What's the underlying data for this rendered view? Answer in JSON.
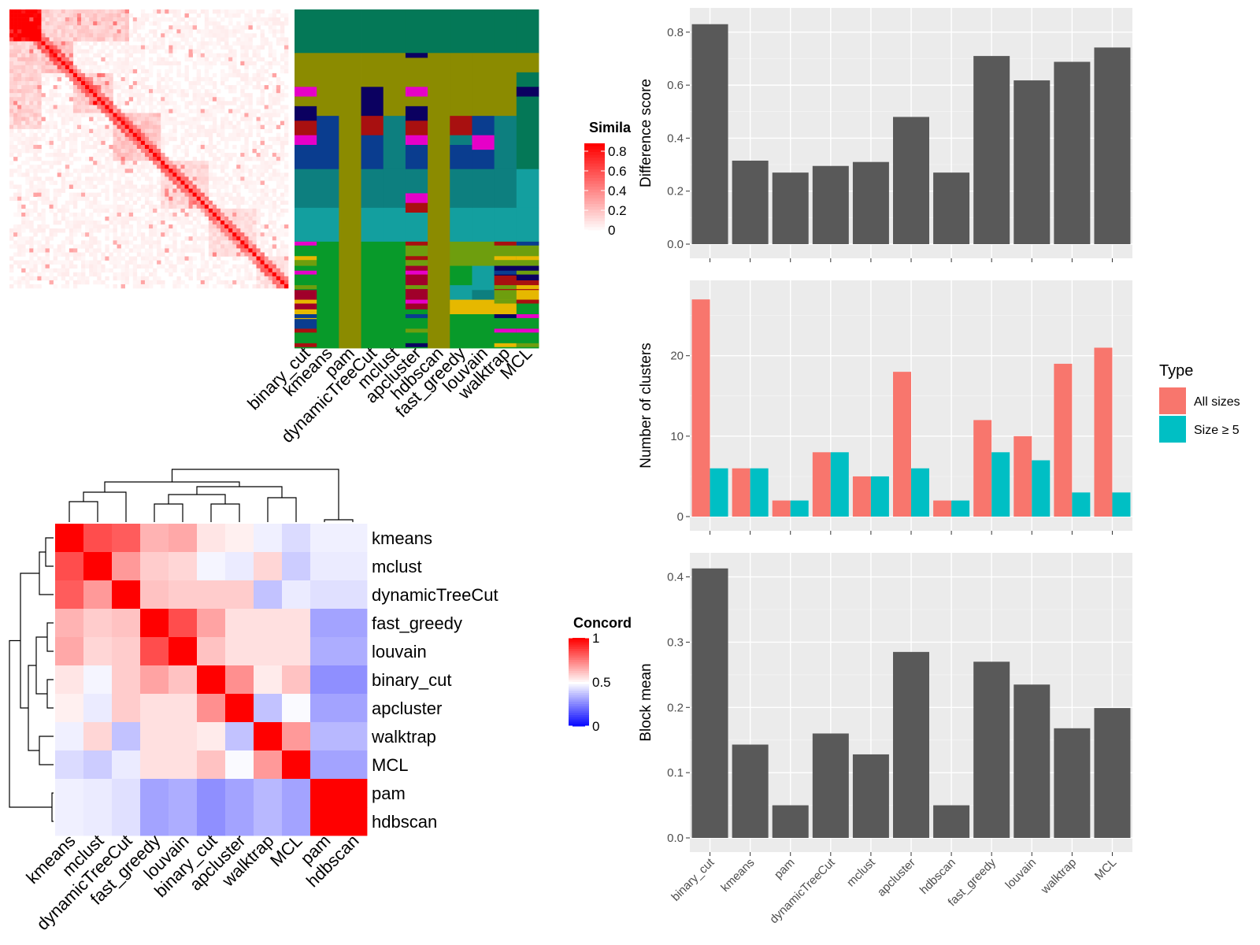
{
  "colors": {
    "bar_dark": "#595959",
    "all_sizes": "#F8766D",
    "size_ge5": "#00BFC4",
    "sim_high": "#ff0000",
    "sim_low": "#ffffff",
    "conc_high": "#ff0000",
    "conc_mid": "#ffffff",
    "conc_low": "#0000ff"
  },
  "similarity_heatmap": {
    "legend_title": "Simila",
    "legend_ticks": [
      "0.8",
      "0.6",
      "0.4",
      "0.2",
      "0"
    ],
    "n": 70
  },
  "partition_heatmap": {
    "methods": [
      "binary_cut",
      "kmeans",
      "pam",
      "dynamicTreeCut",
      "mclust",
      "apcluster",
      "hdbscan",
      "fast_greedy",
      "louvain",
      "walktrap",
      "MCL"
    ],
    "palette": [
      "#047857",
      "#8b8b00",
      "#0a3d8f",
      "#0d7f7f",
      "#139f9f",
      "#089a2a",
      "#a0002a",
      "#e600c8",
      "#0b0060",
      "#a81010",
      "#6e9e0e",
      "#e6b800"
    ]
  },
  "concordance_heatmap": {
    "legend_title": "Concord",
    "legend_ticks": [
      "1",
      "0.5",
      "0"
    ],
    "methods": [
      "kmeans",
      "mclust",
      "dynamicTreeCut",
      "fast_greedy",
      "louvain",
      "binary_cut",
      "apcluster",
      "walktrap",
      "MCL",
      "pam",
      "hdbscan"
    ],
    "matrix": [
      [
        1.0,
        0.85,
        0.82,
        0.65,
        0.67,
        0.55,
        0.53,
        0.47,
        0.43,
        0.47,
        0.47
      ],
      [
        0.85,
        1.0,
        0.7,
        0.6,
        0.58,
        0.48,
        0.46,
        0.58,
        0.4,
        0.46,
        0.46
      ],
      [
        0.82,
        0.7,
        1.0,
        0.62,
        0.6,
        0.6,
        0.6,
        0.38,
        0.46,
        0.44,
        0.44
      ],
      [
        0.65,
        0.6,
        0.62,
        1.0,
        0.85,
        0.68,
        0.56,
        0.56,
        0.56,
        0.32,
        0.32
      ],
      [
        0.67,
        0.58,
        0.6,
        0.85,
        1.0,
        0.62,
        0.56,
        0.56,
        0.56,
        0.34,
        0.34
      ],
      [
        0.55,
        0.48,
        0.6,
        0.68,
        0.62,
        1.0,
        0.72,
        0.54,
        0.62,
        0.28,
        0.28
      ],
      [
        0.53,
        0.46,
        0.6,
        0.56,
        0.56,
        0.72,
        1.0,
        0.38,
        0.49,
        0.32,
        0.32
      ],
      [
        0.47,
        0.58,
        0.38,
        0.56,
        0.56,
        0.54,
        0.38,
        1.0,
        0.7,
        0.36,
        0.36
      ],
      [
        0.43,
        0.4,
        0.46,
        0.56,
        0.56,
        0.62,
        0.49,
        0.7,
        1.0,
        0.32,
        0.32
      ],
      [
        0.47,
        0.46,
        0.44,
        0.32,
        0.34,
        0.28,
        0.32,
        0.36,
        0.32,
        1.0,
        1.0
      ],
      [
        0.47,
        0.46,
        0.44,
        0.32,
        0.34,
        0.28,
        0.32,
        0.36,
        0.32,
        1.0,
        1.0
      ]
    ]
  },
  "chart_data": [
    {
      "type": "bar",
      "categories": [
        "binary_cut",
        "kmeans",
        "pam",
        "dynamicTreeCut",
        "mclust",
        "apcluster",
        "hdbscan",
        "fast_greedy",
        "louvain",
        "walktrap",
        "MCL"
      ],
      "values": [
        0.83,
        0.315,
        0.27,
        0.295,
        0.31,
        0.48,
        0.27,
        0.71,
        0.618,
        0.688,
        0.742
      ],
      "ylabel": "Difference score",
      "ylim": [
        0,
        0.85
      ],
      "yticks": [
        "0.0",
        "0.2",
        "0.4",
        "0.6",
        "0.8"
      ],
      "grid": true
    },
    {
      "type": "bar",
      "categories": [
        "binary_cut",
        "kmeans",
        "pam",
        "dynamicTreeCut",
        "mclust",
        "apcluster",
        "hdbscan",
        "fast_greedy",
        "louvain",
        "walktrap",
        "MCL"
      ],
      "series": [
        {
          "name": "All sizes",
          "values": [
            27,
            6,
            2,
            8,
            5,
            18,
            2,
            12,
            10,
            19,
            21
          ]
        },
        {
          "name": "Size ≥ 5",
          "values": [
            6,
            6,
            2,
            8,
            5,
            6,
            2,
            8,
            7,
            3,
            3
          ]
        }
      ],
      "ylabel": "Number of clusters",
      "ylim": [
        0,
        28
      ],
      "yticks": [
        "0",
        "10",
        "20"
      ],
      "legend_title": "Type",
      "legend_position": "right",
      "grid": true
    },
    {
      "type": "bar",
      "categories": [
        "binary_cut",
        "kmeans",
        "pam",
        "dynamicTreeCut",
        "mclust",
        "apcluster",
        "hdbscan",
        "fast_greedy",
        "louvain",
        "walktrap",
        "MCL"
      ],
      "values": [
        0.413,
        0.143,
        0.05,
        0.16,
        0.128,
        0.285,
        0.05,
        0.27,
        0.235,
        0.168,
        0.199
      ],
      "ylabel": "Block mean",
      "ylim": [
        0,
        0.42
      ],
      "yticks": [
        "0.0",
        "0.1",
        "0.2",
        "0.3",
        "0.4"
      ],
      "grid": true
    }
  ]
}
